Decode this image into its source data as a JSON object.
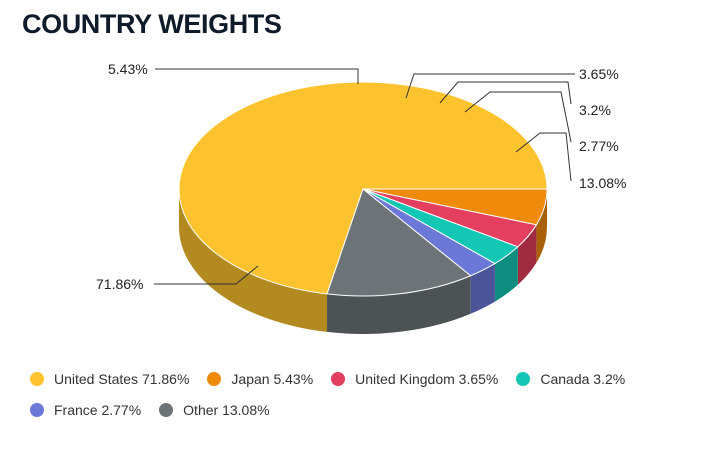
{
  "title": "COUNTRY WEIGHTS",
  "chart_data": {
    "type": "pie",
    "three_d": true,
    "categories": [
      "United States",
      "Japan",
      "United Kingdom",
      "Canada",
      "France",
      "Other"
    ],
    "values": [
      71.86,
      5.43,
      3.65,
      3.2,
      2.77,
      13.08
    ],
    "value_labels": [
      "71.86%",
      "5.43%",
      "3.65%",
      "3.2%",
      "2.77%",
      "13.08%"
    ],
    "legend_labels": [
      "United States 71.86%",
      "Japan 5.43%",
      "United Kingdom 3.65%",
      "Canada 3.2%",
      "France 2.77%",
      "Other 13.08%"
    ],
    "colors": [
      "#FDC32E",
      "#EF8A0B",
      "#E43F5E",
      "#13C7B4",
      "#6B78D8",
      "#6D7478"
    ],
    "side_colors": [
      "#B38A20",
      "#A86108",
      "#A02C42",
      "#0D8C7F",
      "#4B5498",
      "#4D5255"
    ],
    "legend_placement": "bottom-left"
  }
}
